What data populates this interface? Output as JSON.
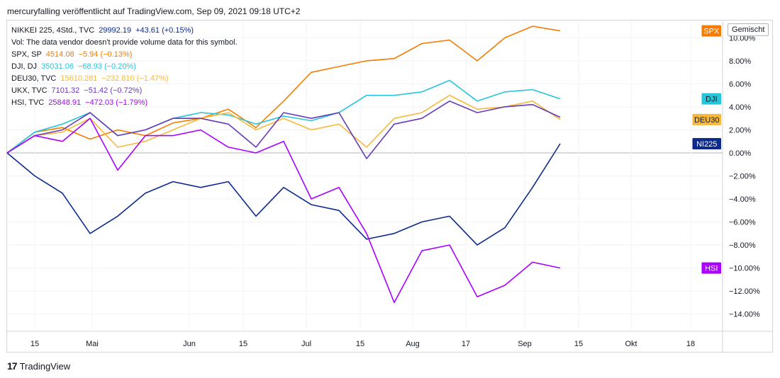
{
  "header": {
    "title": "mercuryfalling veröffentlicht auf TradingView.com, Sep 09, 2021 09:18 UTC+2"
  },
  "scale_button": "Gemischt",
  "footer": {
    "brand": "TradingView",
    "logo": "17"
  },
  "legend": [
    {
      "label": "NIKKEI 225, 4Std., TVC",
      "value": "29992.19",
      "change": "+43.61 (+0.15%)",
      "color": "#0d2b8e"
    },
    {
      "label": "Vol: The data vendor doesn't provide volume data for this symbol.",
      "value": "",
      "change": "",
      "color": "#131722"
    },
    {
      "label": "SPX, SP",
      "value": "4514.08",
      "change": "−5.94 (−0.13%)",
      "color": "#f57c00"
    },
    {
      "label": "DJI, DJ",
      "value": "35031.06",
      "change": "−68.93 (−0.20%)",
      "color": "#26c6da"
    },
    {
      "label": "DEU30, TVC",
      "value": "15610.281",
      "change": "−232.810 (−1.47%)",
      "color": "#f6b93b"
    },
    {
      "label": "UKX, TVC",
      "value": "7101.32",
      "change": "−51.42 (−0.72%)",
      "color": "#673ab7"
    },
    {
      "label": "HSI, TVC",
      "value": "25848.91",
      "change": "−472.03 (−1.79%)",
      "color": "#aa00ff"
    }
  ],
  "chart_data": {
    "type": "line",
    "x_tick_labels": [
      "15",
      "Mai",
      "Jun",
      "15",
      "Jul",
      "15",
      "Aug",
      "17",
      "Sep",
      "15",
      "Okt",
      "18"
    ],
    "y_tick_labels": [
      "10.00%",
      "8.00%",
      "6.00%",
      "4.00%",
      "2.00%",
      "0.00%",
      "−2.00%",
      "−4.00%",
      "−6.00%",
      "−8.00%",
      "−10.00%",
      "−12.00%",
      "−14.00%"
    ],
    "y_ticks": [
      10,
      8,
      6,
      4,
      2,
      0,
      -2,
      -4,
      -6,
      -8,
      -10,
      -12,
      -14
    ],
    "ylim": [
      -15.5,
      11.5
    ],
    "x": [
      "2021-04-15",
      "2021-04-22",
      "2021-04-30",
      "2021-05-07",
      "2021-05-14",
      "2021-05-21",
      "2021-05-31",
      "2021-06-08",
      "2021-06-15",
      "2021-06-22",
      "2021-07-01",
      "2021-07-08",
      "2021-07-15",
      "2021-07-22",
      "2021-07-29",
      "2021-08-05",
      "2021-08-12",
      "2021-08-19",
      "2021-08-26",
      "2021-09-02",
      "2021-09-09"
    ],
    "series": [
      {
        "name": "SPX",
        "color": "#f57c00",
        "values": [
          0.0,
          1.8,
          2.2,
          1.2,
          2.0,
          1.5,
          2.6,
          3.0,
          3.8,
          2.2,
          4.5,
          7.0,
          7.5,
          8.0,
          8.2,
          9.5,
          9.8,
          8.0,
          10.0,
          11.0,
          10.6
        ]
      },
      {
        "name": "DJI",
        "color": "#26c6da",
        "values": [
          0.0,
          1.8,
          2.5,
          3.5,
          1.5,
          2.0,
          3.0,
          3.5,
          3.3,
          2.5,
          3.2,
          2.8,
          3.5,
          5.0,
          5.0,
          5.3,
          6.3,
          4.5,
          5.3,
          5.5,
          4.7
        ]
      },
      {
        "name": "DEU30",
        "color": "#f6b93b",
        "values": [
          0.0,
          1.5,
          1.8,
          3.0,
          0.5,
          1.0,
          2.0,
          3.0,
          3.5,
          2.0,
          3.0,
          2.0,
          2.5,
          0.5,
          3.0,
          3.5,
          5.0,
          3.8,
          4.0,
          4.5,
          2.9
        ]
      },
      {
        "name": "UKX",
        "color": "#673ab7",
        "values": [
          0.0,
          1.5,
          2.0,
          3.5,
          1.5,
          2.0,
          3.0,
          3.0,
          2.5,
          0.5,
          3.5,
          3.0,
          3.5,
          -0.5,
          2.5,
          3.0,
          4.5,
          3.5,
          4.0,
          4.2,
          3.1
        ]
      },
      {
        "name": "NI225",
        "color": "#0d2b8e",
        "values": [
          0.0,
          -2.0,
          -3.5,
          -7.0,
          -5.5,
          -3.5,
          -2.5,
          -3.0,
          -2.5,
          -5.5,
          -3.0,
          -4.5,
          -5.0,
          -7.5,
          -7.0,
          -6.0,
          -5.5,
          -8.0,
          -6.5,
          -3.0,
          0.8
        ]
      },
      {
        "name": "HSI",
        "color": "#aa00ff",
        "values": [
          0.0,
          1.5,
          1.0,
          3.0,
          -1.5,
          1.5,
          1.5,
          2.0,
          0.5,
          0.0,
          1.0,
          -4.0,
          -3.0,
          -7.0,
          -13.0,
          -8.5,
          -8.0,
          -12.5,
          -11.5,
          -9.5,
          -10.0
        ]
      }
    ],
    "end_labels": [
      {
        "name": "SPX",
        "label": "SPX",
        "value": 10.6,
        "color": "#f57c00",
        "text_color": "#ffffff"
      },
      {
        "name": "DJI",
        "label": "DJI",
        "value": 4.7,
        "color": "#26c6da",
        "text_color": "#131722"
      },
      {
        "name": "DEU30",
        "label": "DEU30",
        "value": 2.9,
        "color": "#f6b93b",
        "text_color": "#131722"
      },
      {
        "name": "NI225",
        "label": "NI225",
        "value": 0.8,
        "color": "#0d2b8e",
        "text_color": "#ffffff"
      },
      {
        "name": "HSI",
        "label": "HSI",
        "value": -10.0,
        "color": "#aa00ff",
        "text_color": "#ffffff"
      }
    ]
  }
}
